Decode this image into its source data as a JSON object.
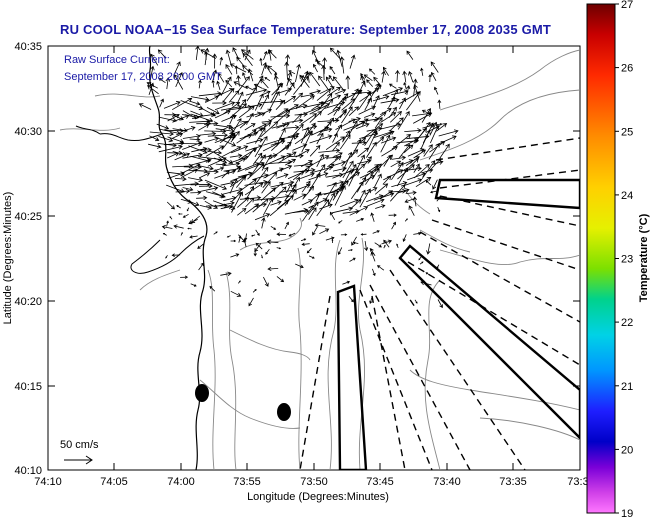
{
  "title": "RU COOL  NOAA−15  Sea Surface Temperature:  September 17, 2008 2035 GMT",
  "current_note": {
    "line1": "Raw Surface Current:",
    "line2": "September 17, 2008 20:00 GMT"
  },
  "scale_label": "50 cm/s",
  "axes": {
    "xlabel": "Longitude (Degrees:Minutes)",
    "ylabel": "Latitude (Degrees:Minutes)",
    "xticks": [
      "74:10",
      "74:05",
      "74:00",
      "73:55",
      "73:50",
      "73:45",
      "73:40",
      "73:35",
      "73:3"
    ],
    "yticks": [
      "40:35",
      "40:30",
      "40:25",
      "40:20",
      "40:15",
      "40:10"
    ]
  },
  "colorbar": {
    "label": "Temperature (°C)",
    "ticks": [
      "27",
      "26",
      "25",
      "24",
      "23",
      "22",
      "21",
      "20",
      "19"
    ],
    "range": [
      19,
      27
    ]
  },
  "colors": {
    "title": "#1a1aa6",
    "coast": "#000000",
    "bathymetry": "#888888",
    "vectors": "#000000"
  }
}
